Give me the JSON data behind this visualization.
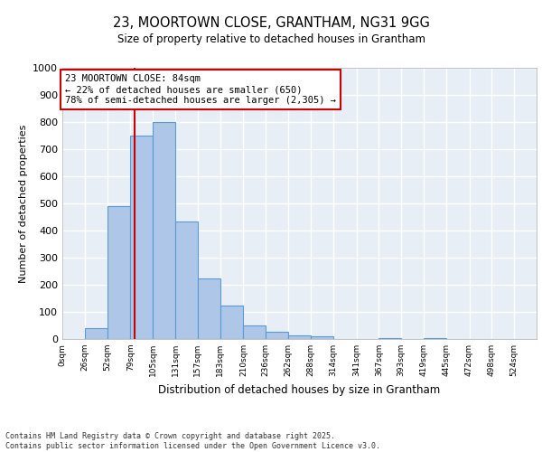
{
  "title_line1": "23, MOORTOWN CLOSE, GRANTHAM, NG31 9GG",
  "title_line2": "Size of property relative to detached houses in Grantham",
  "xlabel": "Distribution of detached houses by size in Grantham",
  "ylabel": "Number of detached properties",
  "bar_edges": [
    0,
    26,
    52,
    79,
    105,
    131,
    157,
    183,
    210,
    236,
    262,
    288,
    314,
    341,
    367,
    393,
    419,
    445,
    472,
    498,
    524
  ],
  "bar_heights": [
    0,
    40,
    490,
    750,
    800,
    435,
    225,
    125,
    50,
    28,
    15,
    10,
    0,
    0,
    5,
    0,
    5,
    0,
    0,
    0,
    0
  ],
  "bar_color": "#aec6e8",
  "bar_edge_color": "#5b9bd5",
  "vline_x": 84,
  "vline_color": "#cc0000",
  "annotation_text": "23 MOORTOWN CLOSE: 84sqm\n← 22% of detached houses are smaller (650)\n78% of semi-detached houses are larger (2,305) →",
  "annotation_box_color": "#cc0000",
  "ylim": [
    0,
    1000
  ],
  "yticks": [
    0,
    100,
    200,
    300,
    400,
    500,
    600,
    700,
    800,
    900,
    1000
  ],
  "tick_labels": [
    "0sqm",
    "26sqm",
    "52sqm",
    "79sqm",
    "105sqm",
    "131sqm",
    "157sqm",
    "183sqm",
    "210sqm",
    "236sqm",
    "262sqm",
    "288sqm",
    "314sqm",
    "341sqm",
    "367sqm",
    "393sqm",
    "419sqm",
    "445sqm",
    "472sqm",
    "498sqm",
    "524sqm"
  ],
  "background_color": "#e8eef5",
  "grid_color": "#ffffff",
  "footer_line1": "Contains HM Land Registry data © Crown copyright and database right 2025.",
  "footer_line2": "Contains public sector information licensed under the Open Government Licence v3.0."
}
